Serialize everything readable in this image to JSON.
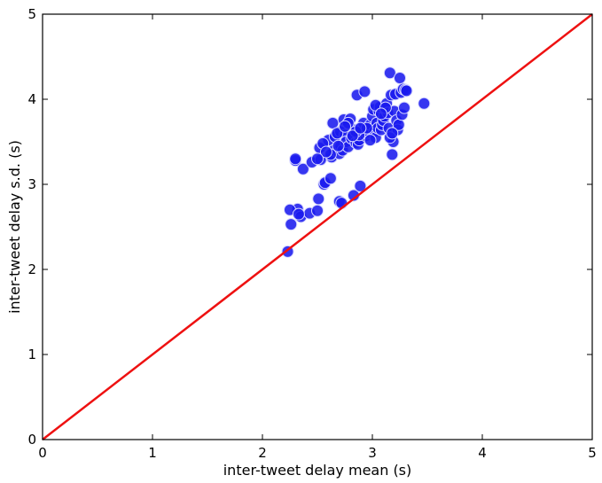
{
  "chart_data": {
    "type": "scatter",
    "xlabel": "inter-tweet delay mean (s)",
    "ylabel": "inter-tweet delay s.d. (s)",
    "xlim": [
      0,
      5
    ],
    "ylim": [
      0,
      5
    ],
    "xticks": [
      "0",
      "1",
      "2",
      "3",
      "4",
      "5"
    ],
    "yticks": [
      "0",
      "1",
      "2",
      "3",
      "4",
      "5"
    ],
    "grid": false,
    "colors": {
      "points": "#1a1aee",
      "point_edge": "#d8d8ff",
      "line": "#ee1111"
    },
    "reference_line": {
      "x": [
        0,
        5
      ],
      "y": [
        0,
        5
      ]
    },
    "series": [
      {
        "x": [
          2.23,
          2.26,
          2.3,
          2.3,
          2.32,
          2.35,
          2.37,
          2.43,
          2.45,
          2.5,
          2.51,
          2.52,
          2.53,
          2.56,
          2.57,
          2.6,
          2.62,
          2.63,
          2.64,
          2.65,
          2.66,
          2.7,
          2.7,
          2.71,
          2.71,
          2.72,
          2.73,
          2.74,
          2.75,
          2.76,
          2.78,
          2.8,
          2.81,
          2.83,
          2.84,
          2.85,
          2.86,
          2.87,
          2.88,
          2.89,
          2.9,
          2.92,
          2.93,
          2.94,
          2.95,
          2.96,
          2.98,
          3.0,
          3.01,
          3.02,
          3.03,
          3.04,
          3.05,
          3.06,
          3.07,
          3.08,
          3.09,
          3.1,
          3.11,
          3.12,
          3.13,
          3.14,
          3.15,
          3.16,
          3.17,
          3.18,
          3.19,
          3.2,
          3.21,
          3.22,
          3.23,
          3.24,
          3.25,
          3.26,
          3.27,
          3.28,
          3.29,
          3.3,
          3.31,
          3.47,
          3.16,
          3.18,
          2.62,
          2.55,
          2.88,
          2.95,
          2.78,
          2.85,
          3.03,
          3.12,
          2.68,
          2.58,
          2.98,
          3.08,
          2.69,
          2.75,
          2.82,
          2.89,
          2.5,
          2.25,
          2.33
        ],
        "y": [
          2.21,
          2.53,
          3.28,
          3.3,
          2.71,
          2.62,
          3.18,
          2.66,
          3.26,
          2.69,
          2.83,
          3.43,
          3.29,
          3.0,
          3.02,
          3.52,
          3.07,
          3.32,
          3.72,
          3.4,
          3.56,
          2.8,
          3.36,
          3.45,
          3.62,
          2.78,
          3.4,
          3.76,
          3.58,
          3.5,
          3.44,
          3.77,
          3.54,
          2.87,
          3.64,
          3.49,
          4.05,
          3.47,
          3.52,
          2.98,
          3.62,
          3.72,
          4.09,
          3.57,
          3.6,
          3.62,
          3.7,
          3.8,
          3.88,
          3.62,
          3.55,
          3.72,
          3.66,
          3.86,
          3.91,
          3.64,
          3.7,
          3.75,
          3.8,
          3.88,
          3.95,
          3.84,
          3.66,
          4.31,
          4.05,
          3.35,
          3.5,
          3.86,
          4.06,
          3.75,
          3.64,
          3.7,
          4.25,
          4.08,
          3.82,
          4.12,
          3.9,
          4.11,
          4.1,
          3.95,
          3.55,
          3.6,
          3.35,
          3.48,
          3.58,
          3.66,
          3.72,
          3.62,
          3.93,
          3.9,
          3.6,
          3.38,
          3.52,
          3.83,
          3.45,
          3.68,
          3.57,
          3.66,
          3.3,
          2.7,
          2.65
        ]
      }
    ]
  }
}
